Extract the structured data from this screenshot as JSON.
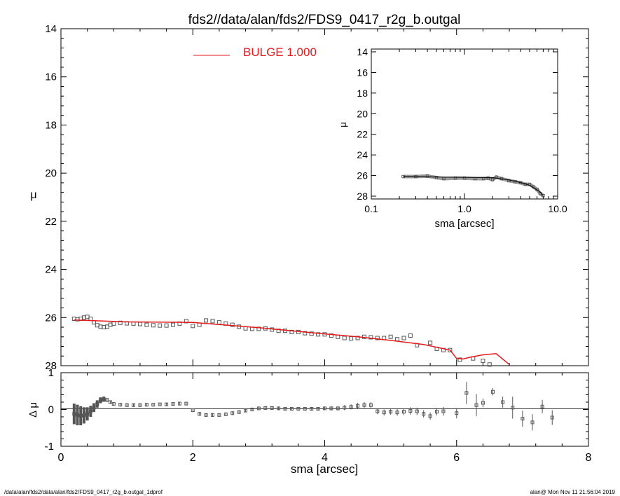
{
  "window": {
    "title": "fds2//data/alan/fds2/FDS9_0417_r2g_b.outgal",
    "footer_left": "/data/alan/fds2/data/alan/fds2/FDS9_0417_r2g_b.outgal_1dprof",
    "footer_right": "alan@  Mon Nov 11 21:56:04 2019"
  },
  "legend": {
    "label": "BULGE  1.000",
    "color": "#e41a1c"
  },
  "colors": {
    "data": "#555555",
    "model": "#e41a1c",
    "axes": "#000000"
  },
  "chart_data": [
    {
      "type": "scatter",
      "panel": "main",
      "xlabel": "",
      "ylabel": "μ",
      "xlim": [
        0,
        8
      ],
      "ylim": [
        28,
        14
      ],
      "y_inverted": true,
      "yticks": [
        "14",
        "16",
        "18",
        "20",
        "22",
        "24",
        "26",
        "28"
      ],
      "series": [
        {
          "kind": "data",
          "x": [
            0.2,
            0.25,
            0.3,
            0.35,
            0.4,
            0.45,
            0.5,
            0.55,
            0.6,
            0.65,
            0.7,
            0.75,
            0.8,
            0.9,
            1.0,
            1.1,
            1.2,
            1.3,
            1.4,
            1.5,
            1.6,
            1.7,
            1.8,
            1.9,
            2.0,
            2.1,
            2.2,
            2.3,
            2.4,
            2.5,
            2.6,
            2.7,
            2.8,
            2.9,
            3.0,
            3.1,
            3.2,
            3.3,
            3.4,
            3.5,
            3.6,
            3.7,
            3.8,
            3.9,
            4.0,
            4.1,
            4.2,
            4.3,
            4.4,
            4.5,
            4.6,
            4.7,
            4.8,
            4.9,
            5.0,
            5.1,
            5.2,
            5.3,
            5.4,
            5.6,
            5.7,
            5.8,
            5.9,
            6.05,
            6.25,
            6.4,
            6.5
          ],
          "y": [
            26.05,
            26.07,
            26.05,
            26.0,
            25.97,
            26.05,
            26.2,
            26.32,
            26.38,
            26.4,
            26.38,
            26.3,
            26.25,
            26.22,
            26.24,
            26.25,
            26.27,
            26.3,
            26.32,
            26.33,
            26.33,
            26.3,
            26.25,
            26.15,
            26.35,
            26.3,
            26.12,
            26.15,
            26.2,
            26.25,
            26.3,
            26.38,
            26.45,
            26.47,
            26.47,
            26.45,
            26.5,
            26.55,
            26.55,
            26.6,
            26.6,
            26.65,
            26.67,
            26.7,
            26.7,
            26.75,
            26.8,
            26.85,
            26.87,
            26.85,
            26.8,
            26.82,
            26.85,
            26.85,
            26.8,
            26.9,
            26.85,
            26.75,
            27.15,
            27.05,
            27.3,
            27.35,
            27.35,
            27.75,
            27.7,
            27.8,
            27.95
          ]
        },
        {
          "kind": "model",
          "name": "BULGE  1.000",
          "x": [
            0.2,
            1.0,
            2.0,
            3.0,
            3.5,
            4.0,
            4.5,
            5.0,
            5.5,
            5.9,
            6.0,
            6.1,
            6.2,
            6.4,
            6.6,
            6.8
          ],
          "y": [
            26.1,
            26.18,
            26.2,
            26.42,
            26.55,
            26.68,
            26.8,
            26.95,
            27.12,
            27.35,
            27.7,
            27.72,
            27.65,
            27.55,
            27.5,
            27.95
          ]
        }
      ]
    },
    {
      "type": "scatter",
      "panel": "residual",
      "xlabel": "sma [arcsec]",
      "ylabel": "Δ μ",
      "xlim": [
        0,
        8
      ],
      "ylim": [
        -1,
        1
      ],
      "xticks": [
        "0",
        "2",
        "4",
        "6",
        "8"
      ],
      "yticks": [
        "-1",
        "0",
        "1"
      ],
      "series": [
        {
          "kind": "residual",
          "x": [
            0.2,
            0.25,
            0.3,
            0.35,
            0.4,
            0.45,
            0.5,
            0.55,
            0.6,
            0.65,
            0.7,
            0.75,
            0.8,
            0.9,
            1.0,
            1.1,
            1.2,
            1.3,
            1.4,
            1.5,
            1.6,
            1.7,
            1.8,
            1.9,
            2.0,
            2.1,
            2.2,
            2.3,
            2.4,
            2.5,
            2.6,
            2.7,
            2.8,
            2.9,
            3.0,
            3.1,
            3.2,
            3.3,
            3.4,
            3.5,
            3.6,
            3.7,
            3.8,
            3.9,
            4.0,
            4.1,
            4.2,
            4.3,
            4.4,
            4.5,
            4.6,
            4.7,
            4.8,
            4.9,
            5.0,
            5.1,
            5.2,
            5.3,
            5.4,
            5.5,
            5.6,
            5.7,
            5.8,
            6.0,
            6.15,
            6.3,
            6.4,
            6.55,
            6.7,
            6.85,
            7.0,
            7.15,
            7.3,
            7.45
          ],
          "y": [
            -0.12,
            -0.15,
            -0.17,
            -0.16,
            -0.12,
            -0.05,
            0.05,
            0.15,
            0.25,
            0.28,
            0.26,
            0.2,
            0.15,
            0.13,
            0.12,
            0.12,
            0.12,
            0.13,
            0.13,
            0.14,
            0.14,
            0.15,
            0.16,
            0.16,
            -0.02,
            -0.12,
            -0.15,
            -0.15,
            -0.15,
            -0.13,
            -0.1,
            -0.07,
            -0.03,
            0.0,
            0.03,
            0.04,
            0.04,
            0.03,
            0.02,
            0.02,
            0.02,
            0.02,
            0.02,
            0.02,
            0.03,
            0.03,
            0.03,
            0.05,
            0.07,
            0.1,
            0.12,
            0.12,
            -0.05,
            -0.08,
            -0.06,
            -0.08,
            -0.06,
            -0.04,
            -0.05,
            -0.12,
            -0.18,
            -0.06,
            -0.05,
            -0.1,
            0.45,
            0.12,
            0.18,
            0.48,
            0.2,
            0.05,
            -0.25,
            -0.35,
            0.08,
            -0.22
          ],
          "err": [
            0.28,
            0.28,
            0.26,
            0.22,
            0.18,
            0.15,
            0.12,
            0.1,
            0.08,
            0.07,
            0.06,
            0.05,
            0.05,
            0.05,
            0.05,
            0.05,
            0.05,
            0.05,
            0.05,
            0.05,
            0.05,
            0.05,
            0.05,
            0.05,
            0.05,
            0.05,
            0.05,
            0.05,
            0.05,
            0.05,
            0.05,
            0.05,
            0.05,
            0.05,
            0.05,
            0.05,
            0.05,
            0.05,
            0.05,
            0.05,
            0.05,
            0.05,
            0.05,
            0.05,
            0.05,
            0.06,
            0.06,
            0.07,
            0.07,
            0.08,
            0.08,
            0.08,
            0.08,
            0.08,
            0.08,
            0.09,
            0.09,
            0.1,
            0.1,
            0.1,
            0.1,
            0.1,
            0.12,
            0.14,
            0.3,
            0.3,
            0.12,
            0.1,
            0.15,
            0.3,
            0.22,
            0.22,
            0.18,
            0.2
          ]
        }
      ]
    },
    {
      "type": "line",
      "panel": "inset",
      "xlabel": "sma [arcsec]",
      "ylabel": "μ",
      "xscale": "log",
      "xlim": [
        0.1,
        10.0
      ],
      "ylim": [
        28,
        14
      ],
      "y_inverted": true,
      "xticks": [
        "0.1",
        "1.0",
        "10.0"
      ],
      "yticks": [
        "14",
        "16",
        "18",
        "20",
        "22",
        "24",
        "26",
        "28"
      ],
      "series": [
        {
          "kind": "data",
          "x": [
            0.22,
            0.3,
            0.4,
            0.5,
            0.6,
            0.8,
            1.0,
            1.3,
            1.6,
            1.8,
            2.0,
            2.2,
            2.5,
            3.0,
            3.5,
            4.0,
            4.5,
            5.0,
            5.5,
            6.0,
            6.5,
            7.0
          ],
          "y": [
            26.1,
            26.1,
            26.05,
            26.2,
            26.3,
            26.25,
            26.25,
            26.3,
            26.3,
            26.25,
            26.4,
            26.15,
            26.3,
            26.5,
            26.6,
            26.7,
            26.85,
            26.85,
            27.1,
            27.35,
            27.75,
            27.95
          ]
        },
        {
          "kind": "model",
          "x": [
            0.22,
            1.0,
            2.0,
            3.0,
            4.0,
            5.0,
            5.9,
            6.5,
            7.0
          ],
          "y": [
            26.1,
            26.18,
            26.2,
            26.42,
            26.68,
            26.95,
            27.35,
            27.6,
            27.95
          ]
        }
      ]
    }
  ]
}
